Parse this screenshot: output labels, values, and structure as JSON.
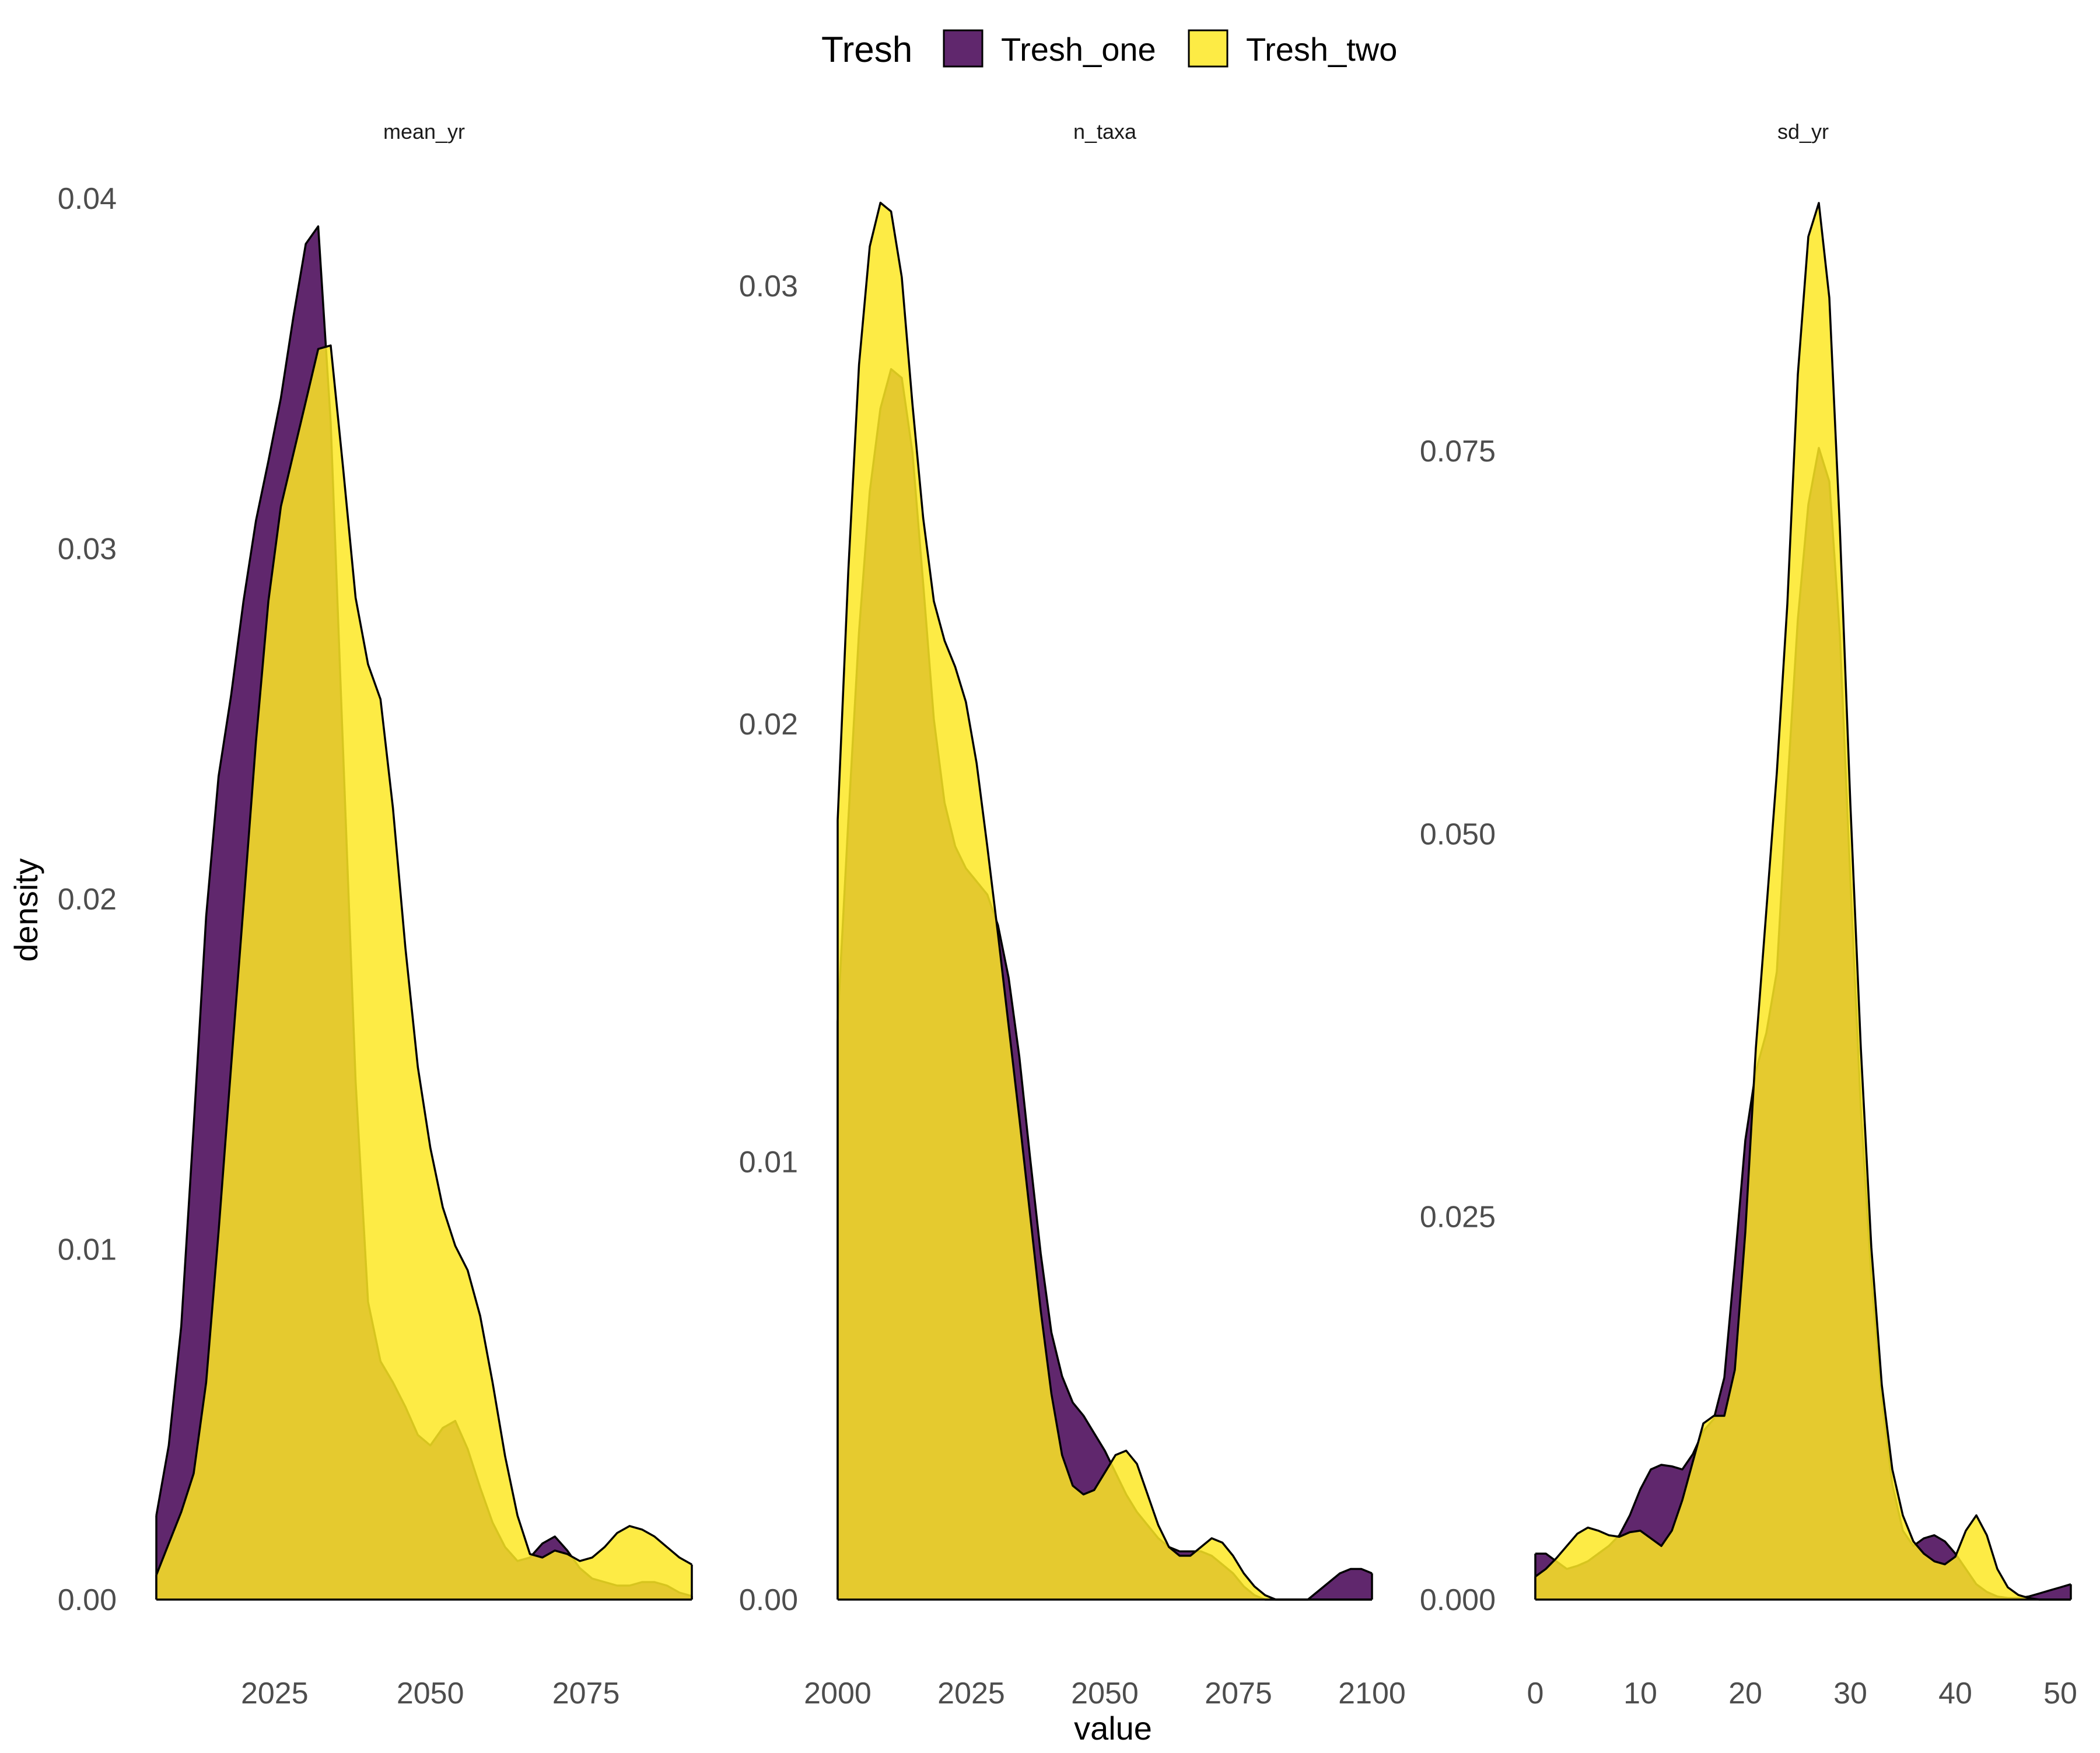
{
  "chart_data": {
    "type": "area",
    "subtype": "density",
    "xlabel": "value",
    "ylabel": "density",
    "grid": false,
    "legend": {
      "title": "Tresh",
      "placement": "top",
      "entries": [
        {
          "name": "Tresh_one",
          "color": "#440154"
        },
        {
          "name": "Tresh_two",
          "color": "#FDE725"
        }
      ]
    },
    "fill_opacity": 0.85,
    "outline_color": "#000000",
    "panels": [
      {
        "strip": "mean_yr",
        "xlim": [
          2006,
          2092
        ],
        "ylim": [
          0,
          0.04
        ],
        "xticks": [
          "2025",
          "2050",
          "2075"
        ],
        "xtick_values": [
          2025,
          2050,
          2075
        ],
        "yticks": [
          "0.00",
          "0.01",
          "0.02",
          "0.03",
          "0.04"
        ],
        "ytick_values": [
          0,
          0.01,
          0.02,
          0.03,
          0.04
        ],
        "series": [
          {
            "name": "Tresh_one",
            "x": [
              2006,
              2008,
              2010,
              2012,
              2014,
              2016,
              2018,
              2020,
              2022,
              2024,
              2026,
              2028,
              2030,
              2032,
              2034,
              2036,
              2038,
              2040,
              2042,
              2044,
              2046,
              2048,
              2050,
              2052,
              2054,
              2056,
              2058,
              2060,
              2062,
              2064,
              2066,
              2068,
              2070,
              2072,
              2074,
              2076,
              2078,
              2080,
              2082,
              2084,
              2086,
              2088,
              2090,
              2092
            ],
            "y": [
              0.0024,
              0.0044,
              0.0078,
              0.0135,
              0.0195,
              0.0235,
              0.0258,
              0.0285,
              0.0308,
              0.0325,
              0.0343,
              0.0366,
              0.0387,
              0.0392,
              0.0336,
              0.0242,
              0.0148,
              0.0085,
              0.0068,
              0.0062,
              0.0055,
              0.0047,
              0.0044,
              0.0049,
              0.0051,
              0.0043,
              0.0032,
              0.0022,
              0.0015,
              0.0011,
              0.0012,
              0.0016,
              0.0018,
              0.0014,
              0.0009,
              0.0006,
              0.0005,
              0.0004,
              0.0004,
              0.0005,
              0.0005,
              0.0004,
              0.0002,
              0.0001
            ]
          },
          {
            "name": "Tresh_two",
            "x": [
              2006,
              2008,
              2010,
              2012,
              2014,
              2016,
              2018,
              2020,
              2022,
              2024,
              2026,
              2028,
              2030,
              2032,
              2034,
              2036,
              2038,
              2040,
              2042,
              2044,
              2046,
              2048,
              2050,
              2052,
              2054,
              2056,
              2058,
              2060,
              2062,
              2064,
              2066,
              2068,
              2070,
              2072,
              2074,
              2076,
              2078,
              2080,
              2082,
              2084,
              2086,
              2088,
              2090,
              2092
            ],
            "y": [
              0.0007,
              0.0016,
              0.0025,
              0.0036,
              0.0062,
              0.0105,
              0.0152,
              0.0198,
              0.0245,
              0.0285,
              0.0312,
              0.0327,
              0.0342,
              0.0357,
              0.0358,
              0.0323,
              0.0286,
              0.0267,
              0.0257,
              0.0226,
              0.0186,
              0.0152,
              0.0129,
              0.0112,
              0.0101,
              0.0094,
              0.0081,
              0.0062,
              0.0041,
              0.0024,
              0.0013,
              0.0012,
              0.0014,
              0.0013,
              0.0011,
              0.0012,
              0.0015,
              0.0019,
              0.0021,
              0.002,
              0.0018,
              0.0015,
              0.0012,
              0.001
            ]
          }
        ]
      },
      {
        "strip": "n_taxa",
        "xlim": [
          2000,
          2100
        ],
        "ylim": [
          0,
          0.032
        ],
        "xticks": [
          "2000",
          "2025",
          "2050",
          "2075",
          "2100"
        ],
        "xtick_values": [
          2000,
          2025,
          2050,
          2075,
          2100
        ],
        "yticks": [
          "0.00",
          "0.01",
          "0.02",
          "0.03"
        ],
        "ytick_values": [
          0,
          0.01,
          0.02,
          0.03
        ],
        "series": [
          {
            "name": "Tresh_one",
            "x": [
              2000,
              2002,
              2004,
              2006,
              2008,
              2010,
              2012,
              2014,
              2016,
              2018,
              2020,
              2022,
              2024,
              2026,
              2028,
              2030,
              2032,
              2034,
              2036,
              2038,
              2040,
              2042,
              2044,
              2046,
              2048,
              2050,
              2052,
              2054,
              2056,
              2058,
              2060,
              2062,
              2064,
              2066,
              2068,
              2070,
              2072,
              2074,
              2076,
              2078,
              2080,
              2082,
              2084,
              2086,
              2088,
              2090,
              2092,
              2094,
              2096,
              2098,
              2100
            ],
            "y": [
              0.0132,
              0.0178,
              0.0221,
              0.0253,
              0.0272,
              0.0281,
              0.0279,
              0.0262,
              0.0232,
              0.0201,
              0.0182,
              0.0172,
              0.0167,
              0.0164,
              0.0161,
              0.0154,
              0.0142,
              0.0124,
              0.0101,
              0.0079,
              0.0061,
              0.0051,
              0.0045,
              0.0042,
              0.0038,
              0.0034,
              0.0029,
              0.0024,
              0.002,
              0.0017,
              0.0014,
              0.0012,
              0.0011,
              0.0011,
              0.0011,
              0.001,
              0.0008,
              0.0006,
              0.0003,
              0.0001,
              0.0,
              0.0,
              0.0,
              0.0,
              0.0,
              0.0002,
              0.0004,
              0.0006,
              0.0007,
              0.0007,
              0.0006
            ]
          },
          {
            "name": "Tresh_two",
            "x": [
              2000,
              2002,
              2004,
              2006,
              2008,
              2010,
              2012,
              2014,
              2016,
              2018,
              2020,
              2022,
              2024,
              2026,
              2028,
              2030,
              2032,
              2034,
              2036,
              2038,
              2040,
              2042,
              2044,
              2046,
              2048,
              2050,
              2052,
              2054,
              2056,
              2058,
              2060,
              2062,
              2064,
              2066,
              2068,
              2070,
              2072,
              2074,
              2076,
              2078,
              2080,
              2082,
              2084,
              2086,
              2088,
              2090,
              2092,
              2094,
              2096,
              2098,
              2100
            ],
            "y": [
              0.0178,
              0.0235,
              0.0282,
              0.0309,
              0.0319,
              0.0317,
              0.0302,
              0.0273,
              0.0247,
              0.0228,
              0.0219,
              0.0213,
              0.0205,
              0.0191,
              0.0172,
              0.0152,
              0.0131,
              0.011,
              0.0088,
              0.0066,
              0.0047,
              0.0033,
              0.0026,
              0.0024,
              0.0025,
              0.0029,
              0.0033,
              0.0034,
              0.0031,
              0.0024,
              0.0017,
              0.0012,
              0.001,
              0.001,
              0.0012,
              0.0014,
              0.0013,
              0.001,
              0.0006,
              0.0003,
              0.0001,
              0.0,
              0.0,
              0.0,
              0.0,
              0.0,
              0.0,
              0.0,
              0.0,
              0.0,
              0.0
            ]
          }
        ]
      },
      {
        "strip": "sd_yr",
        "xlim": [
          0,
          51
        ],
        "ylim": [
          0,
          0.0915
        ],
        "xticks": [
          "0",
          "10",
          "20",
          "30",
          "40",
          "50"
        ],
        "xtick_values": [
          0,
          10,
          20,
          30,
          40,
          50
        ],
        "yticks": [
          "0.000",
          "0.025",
          "0.050",
          "0.075"
        ],
        "ytick_values": [
          0,
          0.025,
          0.05,
          0.075
        ],
        "series": [
          {
            "name": "Tresh_one",
            "x": [
              0,
              1,
              2,
              3,
              4,
              5,
              6,
              7,
              8,
              9,
              10,
              11,
              12,
              13,
              14,
              15,
              16,
              17,
              18,
              19,
              20,
              21,
              22,
              23,
              24,
              25,
              26,
              27,
              28,
              29,
              30,
              31,
              32,
              33,
              34,
              35,
              36,
              37,
              38,
              39,
              40,
              41,
              42,
              43,
              44,
              45,
              46,
              47,
              48,
              49,
              50,
              51
            ],
            "y": [
              0.003,
              0.003,
              0.0025,
              0.002,
              0.0022,
              0.0025,
              0.003,
              0.0035,
              0.0042,
              0.0055,
              0.0072,
              0.0085,
              0.0088,
              0.0087,
              0.0085,
              0.0095,
              0.011,
              0.0118,
              0.0145,
              0.022,
              0.03,
              0.0345,
              0.037,
              0.041,
              0.053,
              0.064,
              0.0715,
              0.0752,
              0.073,
              0.063,
              0.047,
              0.032,
              0.021,
              0.013,
              0.0075,
              0.0045,
              0.0035,
              0.004,
              0.0042,
              0.0038,
              0.003,
              0.002,
              0.001,
              0.0005,
              0.0002,
              0.0001,
              0.0001,
              0.0002,
              0.0004,
              0.0006,
              0.0008,
              0.001
            ]
          },
          {
            "name": "Tresh_two",
            "x": [
              0,
              1,
              2,
              3,
              4,
              5,
              6,
              7,
              8,
              9,
              10,
              11,
              12,
              13,
              14,
              15,
              16,
              17,
              18,
              19,
              20,
              21,
              22,
              23,
              24,
              25,
              26,
              27,
              28,
              29,
              30,
              31,
              32,
              33,
              34,
              35,
              36,
              37,
              38,
              39,
              40,
              41,
              42,
              43,
              44,
              45,
              46,
              47,
              48,
              49,
              50,
              51
            ],
            "y": [
              0.0015,
              0.002,
              0.0027,
              0.0035,
              0.0043,
              0.0047,
              0.0045,
              0.0042,
              0.0041,
              0.0044,
              0.0045,
              0.004,
              0.0035,
              0.0045,
              0.0065,
              0.009,
              0.0115,
              0.012,
              0.012,
              0.015,
              0.024,
              0.036,
              0.045,
              0.054,
              0.065,
              0.08,
              0.089,
              0.0912,
              0.085,
              0.07,
              0.052,
              0.036,
              0.023,
              0.014,
              0.0085,
              0.0055,
              0.0038,
              0.003,
              0.0025,
              0.0023,
              0.0028,
              0.0045,
              0.0055,
              0.0042,
              0.002,
              0.0008,
              0.0003,
              0.0001,
              0.0,
              0.0,
              0.0,
              0.0
            ]
          }
        ]
      }
    ]
  }
}
